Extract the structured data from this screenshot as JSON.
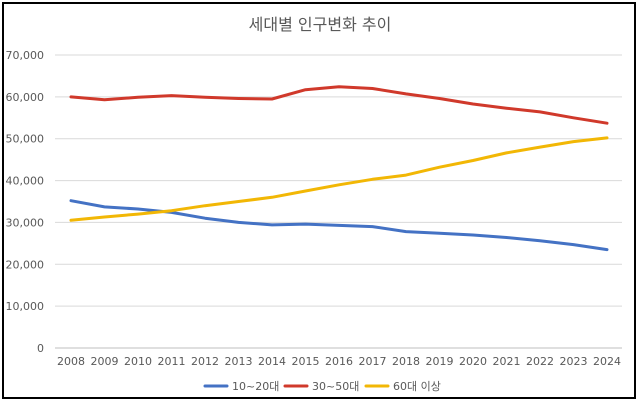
{
  "chart_data": {
    "type": "line",
    "title": "세대별 인구변화 추이",
    "xlabel": "",
    "ylabel": "",
    "x": [
      "2008",
      "2009",
      "2010",
      "2011",
      "2012",
      "2013",
      "2014",
      "2015",
      "2016",
      "2017",
      "2018",
      "2019",
      "2020",
      "2021",
      "2022",
      "2023",
      "2024"
    ],
    "ylim": [
      0,
      70000
    ],
    "yticks": [
      "0",
      "10,000",
      "20,000",
      "30,000",
      "40,000",
      "50,000",
      "60,000",
      "70,000"
    ],
    "grid": true,
    "legend_position": "bottom",
    "series": [
      {
        "name": "10~20대",
        "color": "#4472C4",
        "values": [
          35200,
          33700,
          33200,
          32400,
          31000,
          30000,
          29400,
          29600,
          29300,
          29000,
          27800,
          27400,
          27000,
          26400,
          25600,
          24700,
          23500
        ]
      },
      {
        "name": "30~50대",
        "color": "#D0392B",
        "values": [
          60000,
          59300,
          59900,
          60300,
          59900,
          59600,
          59500,
          61700,
          62400,
          62000,
          60700,
          59600,
          58300,
          57300,
          56400,
          55000,
          53700
        ]
      },
      {
        "name": "60대 이상",
        "color": "#F2B705",
        "values": [
          30500,
          31300,
          32000,
          32800,
          34000,
          35000,
          36000,
          37500,
          39000,
          40300,
          41300,
          43200,
          44800,
          46600,
          48000,
          49300,
          50200
        ]
      }
    ]
  }
}
